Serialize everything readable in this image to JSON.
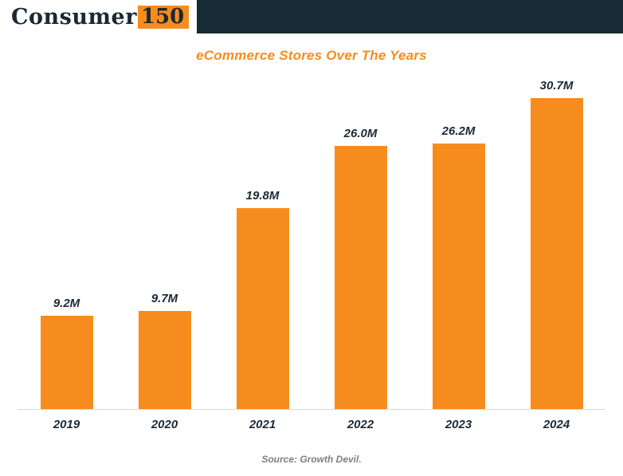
{
  "header": {
    "logo_text": "Consumer",
    "logo_badge": "150"
  },
  "chart_data": {
    "type": "bar",
    "title": "eCommerce Stores Over The Years",
    "categories": [
      "2019",
      "2020",
      "2021",
      "2022",
      "2023",
      "2024"
    ],
    "values": [
      9.2,
      9.7,
      19.8,
      26.0,
      26.2,
      30.7
    ],
    "value_labels": [
      "9.2M",
      "9.7M",
      "19.8M",
      "26.0M",
      "26.2M",
      "30.7M"
    ],
    "unit": "millions of stores",
    "xlabel": "",
    "ylabel": "",
    "ylim": [
      0,
      30.7
    ],
    "grid": false,
    "legend": false,
    "bar_color": "#F78C1E"
  },
  "footer": {
    "source": "Source: Growth Devil."
  },
  "colors": {
    "header_bg": "#182A33",
    "accent_orange": "#F78C1E",
    "text_navy": "#1B2A38",
    "axis_gray": "#D9D9D9",
    "source_gray": "#7F7F7F"
  }
}
